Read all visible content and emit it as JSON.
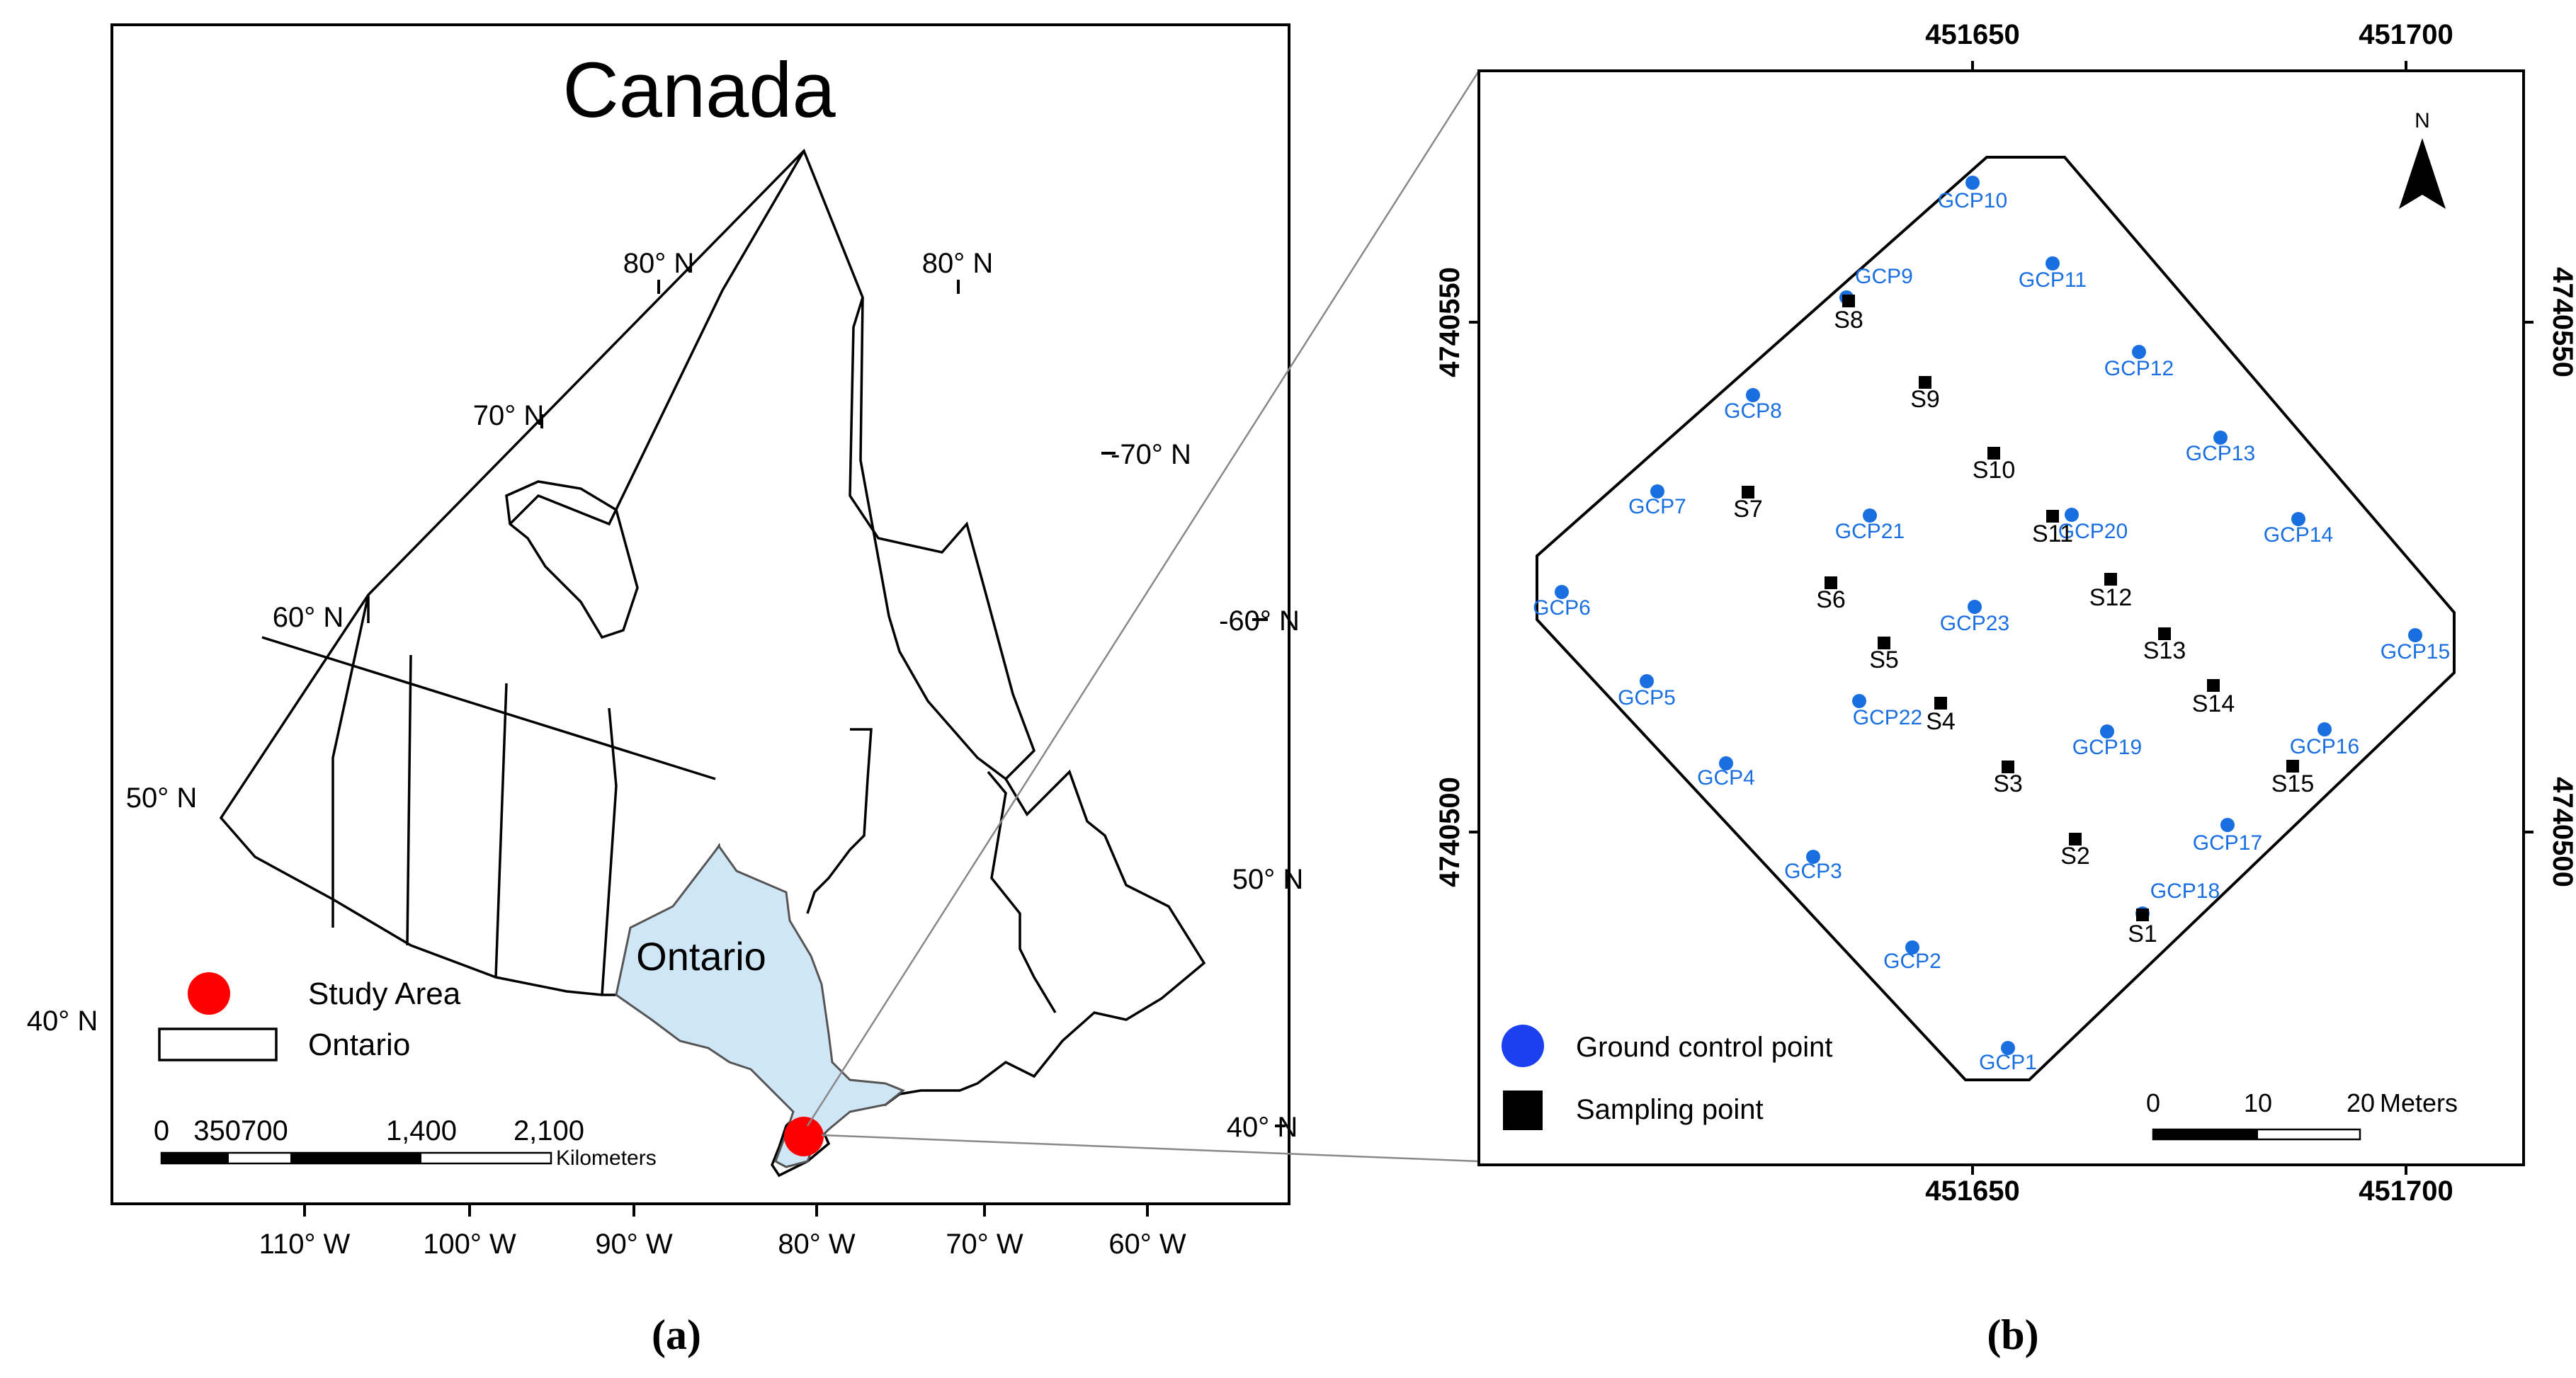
{
  "panel_a": {
    "title": "Canada",
    "province_label": "Ontario",
    "caption": "(a)",
    "lat_labels": [
      "80° N",
      "80° N",
      "70° N",
      "-70° N",
      "60° N",
      "-60° N",
      "50° N",
      "50° N",
      "40° N",
      "40° N"
    ],
    "lon_labels": [
      "110° W",
      "100° W",
      "90° W",
      "80° W",
      "70° W",
      "60° W"
    ],
    "legend": {
      "study_area": "Study Area",
      "ontario": "Ontario"
    },
    "scalebar": {
      "ticks": [
        "0",
        "350700",
        "1,400",
        "2,100"
      ],
      "unit": "Kilometers"
    },
    "colors": {
      "ontario_fill": "#cfe6f6",
      "study_area": "#ff0000"
    }
  },
  "panel_b": {
    "caption": "(b)",
    "x_ticks": [
      "451650",
      "451700"
    ],
    "y_ticks": [
      "4740550",
      "4740500"
    ],
    "north_label": "N",
    "legend": {
      "gcp": "Ground control point",
      "sampling": "Sampling point"
    },
    "scalebar": {
      "ticks": [
        "0",
        "10",
        "20"
      ],
      "unit": "Meters"
    },
    "colors": {
      "gcp": "#1a6fe0",
      "sampling": "#000000"
    },
    "gcp_labels": [
      "GCP1",
      "GCP2",
      "GCP3",
      "GCP4",
      "GCP5",
      "GCP6",
      "GCP7",
      "GCP8",
      "GCP9",
      "GCP10",
      "GCP11",
      "GCP12",
      "GCP13",
      "GCP14",
      "GCP15",
      "GCP16",
      "GCP17",
      "GCP18",
      "GCP19",
      "GCP20",
      "GCP21",
      "GCP22",
      "GCP23"
    ],
    "sample_labels": [
      "S1",
      "S2",
      "S3",
      "S4",
      "S5",
      "S6",
      "S7",
      "S8",
      "S9",
      "S10",
      "S11",
      "S12",
      "S13",
      "S14",
      "S15"
    ]
  }
}
